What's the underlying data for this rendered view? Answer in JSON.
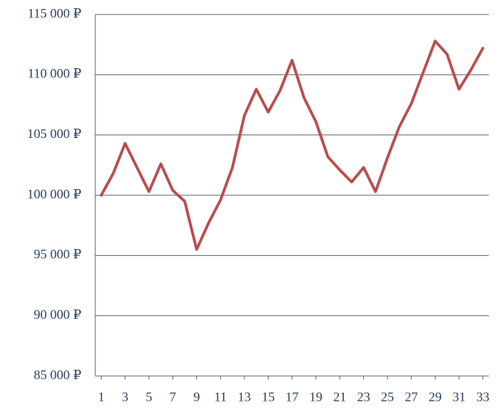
{
  "chart_data": {
    "type": "line",
    "x": [
      1,
      2,
      3,
      4,
      5,
      6,
      7,
      8,
      9,
      10,
      11,
      12,
      13,
      14,
      15,
      16,
      17,
      18,
      19,
      20,
      21,
      22,
      23,
      24,
      25,
      26,
      27,
      28,
      29,
      30,
      31,
      32,
      33
    ],
    "series": [
      {
        "color": "#b94c4b",
        "values": [
          100000,
          101800,
          104300,
          102300,
          100300,
          102600,
          100400,
          99500,
          95500,
          97700,
          99600,
          102300,
          106600,
          108800,
          106900,
          108700,
          111200,
          108100,
          106100,
          103200,
          102100,
          101100,
          102300,
          100300,
          103100,
          105700,
          107600,
          110200,
          112800,
          111700,
          108800,
          110400,
          112200
        ]
      }
    ],
    "xlim": [
      0.5,
      33.5
    ],
    "xticks": [
      1,
      3,
      5,
      7,
      9,
      11,
      13,
      15,
      17,
      19,
      21,
      23,
      25,
      27,
      29,
      31,
      33
    ],
    "ylim": [
      85000,
      115000
    ],
    "yticks": [
      {
        "value": 85000,
        "label": "85 000 ₽"
      },
      {
        "value": 90000,
        "label": "90 000 ₽"
      },
      {
        "value": 95000,
        "label": "95 000 ₽"
      },
      {
        "value": 100000,
        "label": "100 000 ₽"
      },
      {
        "value": 105000,
        "label": "105 000 ₽"
      },
      {
        "value": 110000,
        "label": "110 000 ₽"
      },
      {
        "value": 115000,
        "label": "115 000 ₽"
      }
    ],
    "grid": true
  }
}
